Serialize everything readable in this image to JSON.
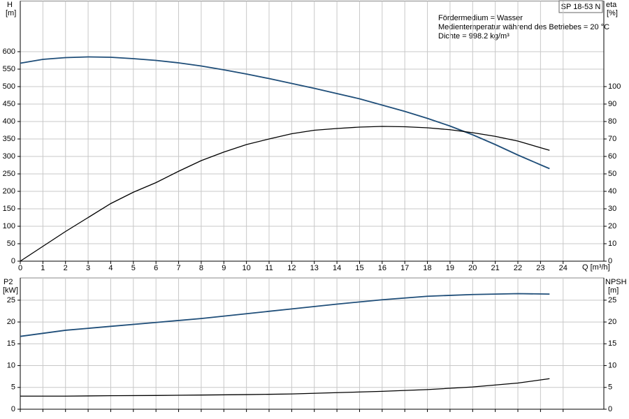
{
  "chart_data": [
    {
      "type": "line",
      "title": "SP 18-53 N",
      "annotations": [
        "Fördermedium = Wasser",
        "Medientemperatur während des Betriebes = 20 °C",
        "Dichte = 998.2 kg/m³"
      ],
      "x_label": "Q [m³/h]",
      "y_label": "H",
      "y_unit": "[m]",
      "y2_label": "eta",
      "y2_unit": "[%]",
      "x": [
        0,
        1,
        2,
        3,
        4,
        5,
        6,
        7,
        8,
        9,
        10,
        11,
        12,
        13,
        14,
        15,
        16,
        17,
        18,
        19,
        20,
        21,
        22,
        23,
        23.4
      ],
      "series": [
        {
          "name": "H",
          "color": "#1f4e79",
          "values": [
            567,
            578,
            583,
            585,
            584,
            580,
            575,
            568,
            559,
            548,
            536,
            523,
            509,
            495,
            480,
            465,
            447,
            429,
            409,
            387,
            362,
            334,
            304,
            276,
            265
          ]
        },
        {
          "name": "eta",
          "color": "#000000",
          "axis": "y2",
          "values": [
            0,
            8.5,
            17,
            25,
            33,
            39.5,
            45,
            51.5,
            57.6,
            62.5,
            66.8,
            70,
            73,
            75,
            76,
            76.8,
            77.2,
            77,
            76.4,
            75.3,
            73.6,
            71.5,
            68.8,
            65,
            63.5
          ]
        }
      ],
      "xlim": [
        0,
        25.8
      ],
      "xticks": [
        0,
        1,
        2,
        3,
        4,
        5,
        6,
        7,
        8,
        9,
        10,
        11,
        12,
        13,
        14,
        15,
        16,
        17,
        18,
        19,
        20,
        21,
        22,
        23,
        24
      ],
      "ylim": [
        0,
        745
      ],
      "yticks": [
        0,
        50,
        100,
        150,
        200,
        250,
        300,
        350,
        400,
        450,
        500,
        550,
        600
      ],
      "y2lim": [
        0,
        149
      ],
      "y2ticks": [
        0,
        10,
        20,
        30,
        40,
        50,
        60,
        70,
        80,
        90,
        100
      ],
      "grid": true
    },
    {
      "type": "line",
      "y_label": "P2",
      "y_unit": "[kW]",
      "y2_label": "NPSH",
      "y2_unit": "[m]",
      "x": [
        0,
        2,
        4,
        6,
        8,
        10,
        12,
        14,
        16,
        18,
        20,
        22,
        23.4
      ],
      "series": [
        {
          "name": "P2",
          "color": "#1f4e79",
          "values": [
            16.7,
            18.1,
            19,
            19.9,
            20.8,
            21.9,
            23,
            24.1,
            25.1,
            25.9,
            26.3,
            26.5,
            26.4
          ]
        },
        {
          "name": "NPSH",
          "color": "#000000",
          "axis": "y2",
          "values": [
            3,
            3,
            3.1,
            3.15,
            3.25,
            3.35,
            3.5,
            3.8,
            4.1,
            4.5,
            5.1,
            6,
            7
          ]
        }
      ],
      "xlim": [
        0,
        25.8
      ],
      "ylim": [
        0,
        30.1
      ],
      "yticks": [
        0,
        5,
        10,
        15,
        20,
        25
      ],
      "y2lim": [
        0,
        30.1
      ],
      "y2ticks": [
        0,
        5,
        10,
        15,
        20,
        25
      ],
      "grid": true
    }
  ]
}
